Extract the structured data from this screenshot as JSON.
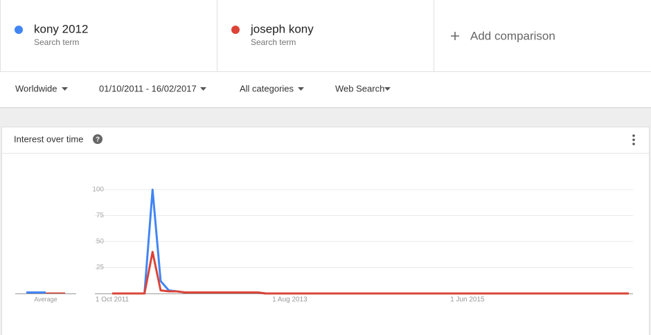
{
  "comparison": {
    "terms": [
      {
        "label": "Search term"
      },
      {
        "label": "Search term"
      }
    ],
    "add": "Add comparison"
  },
  "filters": [
    "Worldwide",
    "01/10/2011 - 16/02/2017",
    "All categories",
    "Web Search"
  ],
  "card": {
    "title": "Interest over time",
    "help": "?"
  },
  "chart_data": {
    "type": "line",
    "average_label": "Average",
    "categories": [
      "1 Oct 2011",
      null,
      null,
      null,
      null,
      null,
      null,
      null,
      null,
      null,
      null,
      null,
      null,
      null,
      null,
      null,
      null,
      null,
      null,
      null,
      null,
      null,
      "1 Aug 2013",
      null,
      null,
      null,
      null,
      null,
      null,
      null,
      null,
      null,
      null,
      null,
      null,
      null,
      null,
      null,
      null,
      null,
      null,
      null,
      null,
      null,
      "1 Jun 2015",
      null,
      null,
      null,
      null,
      null,
      null,
      null,
      null,
      null,
      null,
      null,
      null,
      null,
      null,
      null,
      null,
      null,
      null,
      null,
      null
    ],
    "series": [
      {
        "name": "kony 2012",
        "color": "#4285f4",
        "average": 1,
        "values": [
          0,
          0,
          0,
          0,
          0,
          100,
          12,
          3,
          2,
          1,
          1,
          1,
          1,
          1,
          1,
          1,
          1,
          1,
          1,
          0,
          0,
          0,
          0,
          0,
          0,
          0,
          0,
          0,
          0,
          0,
          0,
          0,
          0,
          0,
          0,
          0,
          0,
          0,
          0,
          0,
          0,
          0,
          0,
          0,
          0,
          0,
          0,
          0,
          0,
          0,
          0,
          0,
          0,
          0,
          0,
          0,
          0,
          0,
          0,
          0,
          0,
          0,
          0,
          0,
          0
        ]
      },
      {
        "name": "joseph kony",
        "color": "#db4437",
        "average": 0,
        "values": [
          0,
          0,
          0,
          0,
          0,
          40,
          3,
          2,
          2,
          1,
          1,
          1,
          1,
          1,
          1,
          1,
          1,
          1,
          1,
          0,
          0,
          0,
          0,
          0,
          0,
          0,
          0,
          0,
          0,
          0,
          0,
          0,
          0,
          0,
          0,
          0,
          0,
          0,
          0,
          0,
          0,
          0,
          0,
          0,
          0,
          0,
          0,
          0,
          0,
          0,
          0,
          0,
          0,
          0,
          0,
          0,
          0,
          0,
          0,
          0,
          0,
          0,
          0,
          0,
          0
        ]
      }
    ],
    "ylim": [
      0,
      100
    ],
    "yticks": [
      25,
      50,
      75,
      100
    ],
    "grid": true
  }
}
